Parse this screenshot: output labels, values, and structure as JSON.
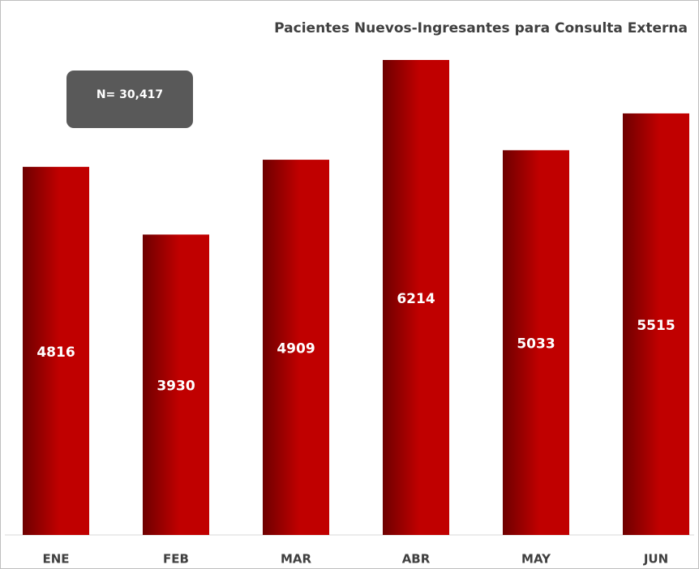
{
  "chart_data": {
    "type": "bar",
    "title": "Pacientes Nuevos-Ingresantes para Consulta Externa",
    "annotation": "N= 30,417",
    "categories": [
      "ENE",
      "FEB",
      "MAR",
      "ABR",
      "MAY",
      "JUN"
    ],
    "values": [
      4816,
      3930,
      4909,
      6214,
      5033,
      5515
    ],
    "color": "#c00000"
  }
}
